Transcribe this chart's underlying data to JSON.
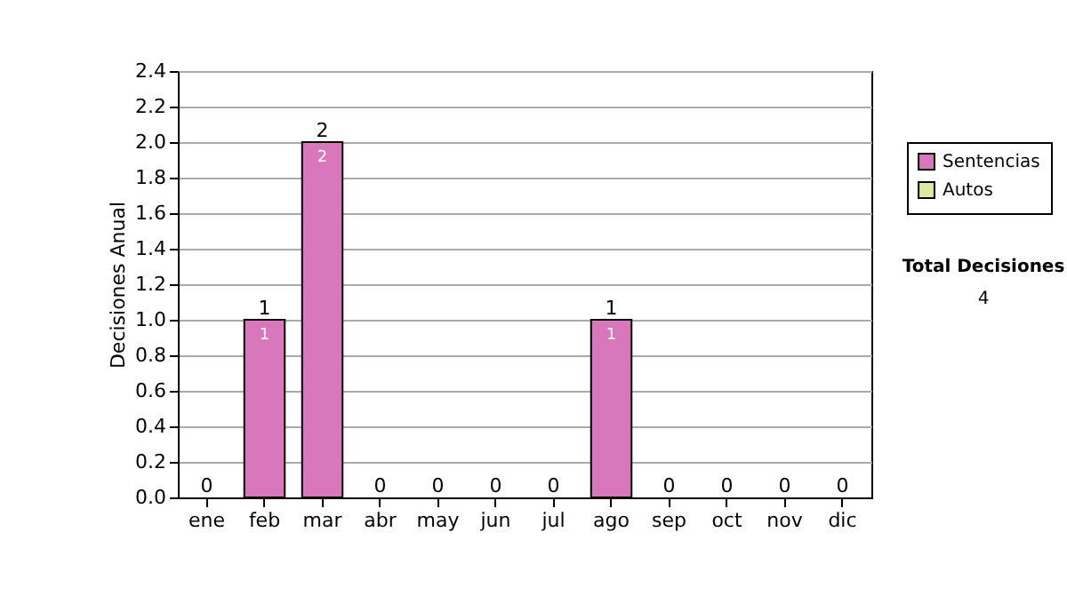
{
  "chart_data": {
    "type": "bar",
    "ylabel": "Decisiones Anual",
    "categories": [
      "ene",
      "feb",
      "mar",
      "abr",
      "may",
      "jun",
      "jul",
      "ago",
      "sep",
      "oct",
      "nov",
      "dic"
    ],
    "series": [
      {
        "name": "Sentencias",
        "color": "#d977bd",
        "values": [
          0,
          1,
          2,
          0,
          0,
          0,
          0,
          1,
          0,
          0,
          0,
          0
        ],
        "value_labels": [
          null,
          "1",
          "2",
          null,
          null,
          null,
          null,
          "1",
          null,
          null,
          null,
          null
        ]
      },
      {
        "name": "Autos",
        "color": "#d9eba0",
        "values": [
          0,
          0,
          0,
          0,
          0,
          0,
          0,
          0,
          0,
          0,
          0,
          0
        ]
      }
    ],
    "totals": [
      "0",
      "1",
      "2",
      "0",
      "0",
      "0",
      "0",
      "1",
      "0",
      "0",
      "0",
      "0"
    ],
    "ylim": [
      0,
      2.4
    ],
    "yticks": [
      {
        "value": 0,
        "label": "0.0"
      },
      0.2,
      0.4,
      0.6,
      0.8,
      {
        "value": 1,
        "label": "1.0"
      },
      1.2,
      1.4,
      1.6,
      1.8,
      {
        "value": 2,
        "label": "2.0"
      },
      2.2,
      2.4
    ],
    "grid": "y",
    "legend": "right",
    "annotations": [
      "Total Decisiones",
      "4"
    ]
  }
}
